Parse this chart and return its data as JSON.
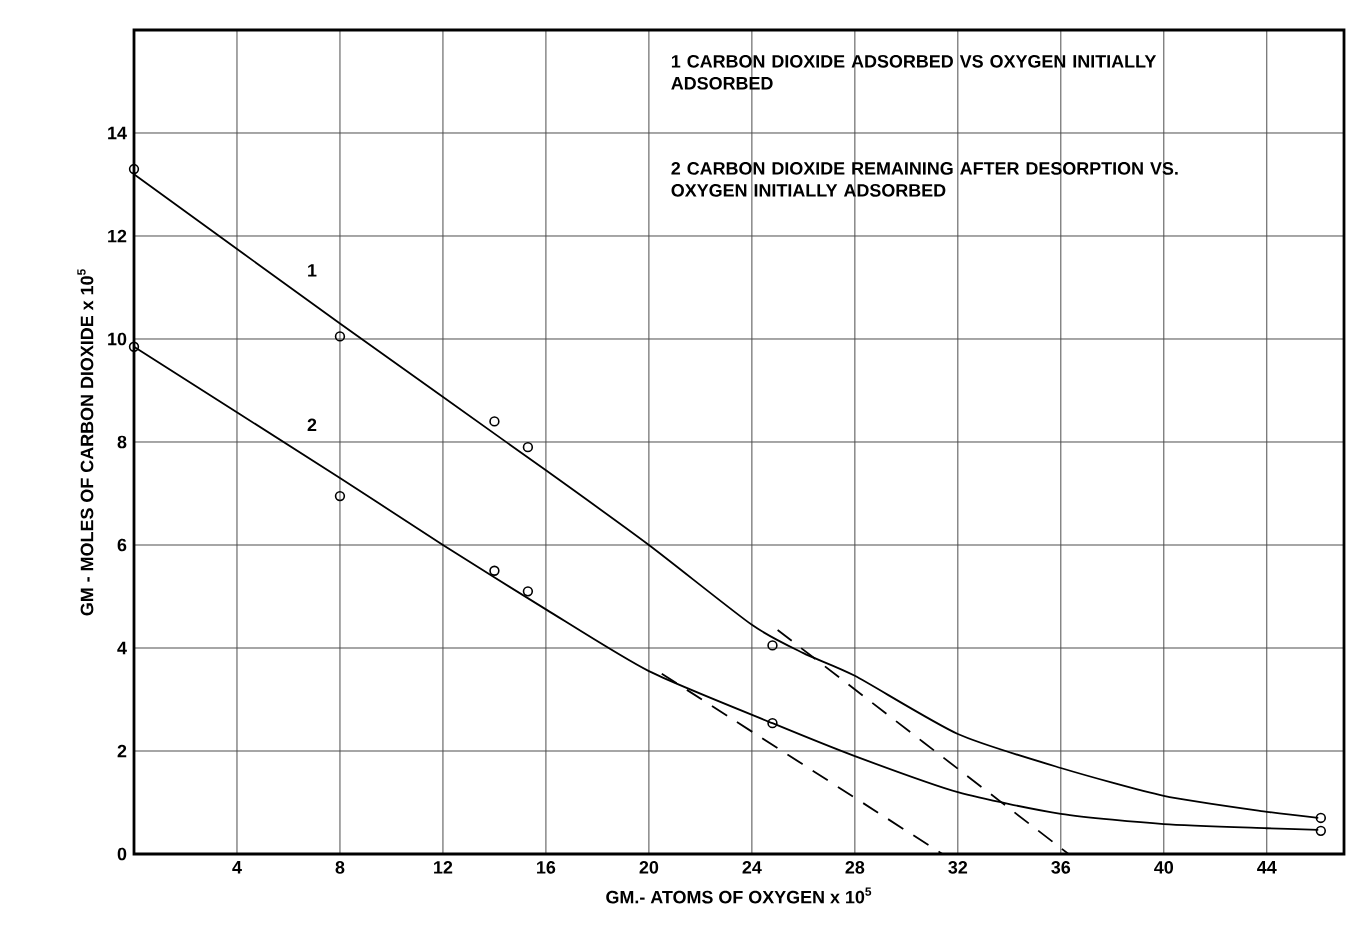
{
  "chart_data": {
    "type": "line",
    "xlabel": "GM.- ATOMS OF OXYGEN x 10$^{5}$",
    "ylabel": "GM - MOLES OF CARBON DIOXIDE x 10$^{5}$",
    "annotations": [
      "1 CARBON DIOXIDE ADSORBED VS OXYGEN INITIALLY ADSORBED",
      "2 CARBON DIOXIDE REMAINING AFTER DESORPTION VS. OXYGEN INITIALLY ADSORBED"
    ],
    "xlim": [
      0,
      47
    ],
    "ylim": [
      0,
      16
    ],
    "xticks": [
      4,
      8,
      12,
      16,
      20,
      24,
      28,
      32,
      36,
      40,
      44
    ],
    "yticks": [
      0,
      2,
      4,
      6,
      8,
      10,
      12,
      14
    ],
    "grid": true,
    "series": [
      {
        "type": "scatter",
        "marker": "circle",
        "color": "#000000",
        "x": [
          0,
          8,
          14,
          15.3,
          24.8,
          46.1
        ],
        "values": [
          13.3,
          10.05,
          8.4,
          7.9,
          4.05,
          0.7
        ]
      },
      {
        "type": "scatter",
        "marker": "circle",
        "color": "#000000",
        "x": [
          0,
          8,
          14,
          15.3,
          24.8,
          46.1
        ],
        "values": [
          9.85,
          6.95,
          5.5,
          5.1,
          2.54,
          0.45
        ]
      },
      {
        "name": "1",
        "line_style": "solid",
        "color": "#000000",
        "x": [
          0,
          8,
          16,
          20,
          24,
          26,
          28,
          32,
          36,
          40,
          44,
          46
        ],
        "values": [
          13.2,
          10.3,
          7.45,
          6.0,
          4.45,
          3.9,
          3.46,
          2.33,
          1.67,
          1.13,
          0.82,
          0.7
        ]
      },
      {
        "name": "2",
        "line_style": "solid",
        "color": "#000000",
        "x": [
          0,
          8,
          12,
          16,
          20,
          24.8,
          28,
          32,
          36,
          40,
          44,
          46
        ],
        "values": [
          9.85,
          7.3,
          6.0,
          4.75,
          3.55,
          2.54,
          1.9,
          1.2,
          0.78,
          0.58,
          0.5,
          0.47
        ]
      },
      {
        "line_style": "dashed",
        "color": "#000000",
        "x": [
          25,
          36.3
        ],
        "values": [
          4.35,
          0
        ]
      },
      {
        "line_style": "dashed",
        "color": "#000000",
        "x": [
          20.5,
          31.4
        ],
        "values": [
          3.5,
          0
        ]
      }
    ]
  }
}
